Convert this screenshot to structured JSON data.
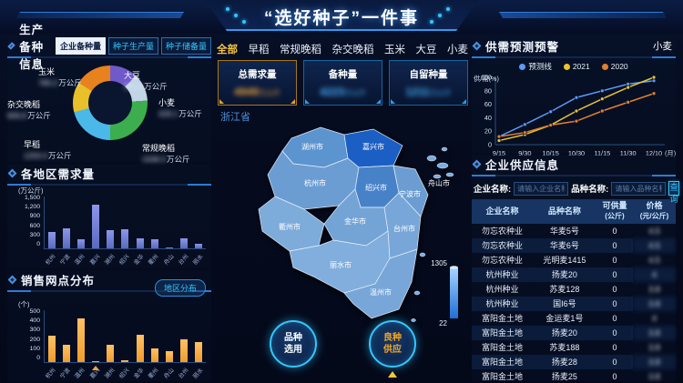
{
  "header": {
    "title": "“选好种子”一件事"
  },
  "colors": {
    "accent": "#35c6ff",
    "active_tab": "#f6c643",
    "bar_blue": "#6b7ad0",
    "bar_orange": "#f5a733"
  },
  "production_panel": {
    "title": "生产备种信息",
    "tabs": [
      {
        "label": "企业备种量",
        "active": true
      },
      {
        "label": "种子生产量",
        "active": false
      },
      {
        "label": "种子储备量",
        "active": false
      }
    ],
    "chart_data": {
      "type": "pie",
      "title": "企业备种量",
      "unit": "万公斤",
      "values_blurred": true,
      "slices": [
        {
          "label": "大豆",
          "value_display": "355.6",
          "pct": 12,
          "color": "#7059c9"
        },
        {
          "label": "小麦",
          "value_display": "429.1",
          "pct": 12,
          "color": "#c2d4e8"
        },
        {
          "label": "常规晚稻",
          "value_display": "1508.3",
          "pct": 26,
          "color": "#3cae4e"
        },
        {
          "label": "早稻",
          "value_display": "1203.4",
          "pct": 21,
          "color": "#4ab8e8"
        },
        {
          "label": "杂交晚稻",
          "value_display": "906.8",
          "pct": 13,
          "color": "#e7c02a"
        },
        {
          "label": "玉米",
          "value_display": "780.2",
          "pct": 16,
          "color": "#e8821f"
        }
      ]
    }
  },
  "demand_panel": {
    "title": "各地区需求量",
    "chart_data": {
      "type": "bar",
      "unit": "(万公斤)",
      "ylim": [
        0,
        1500
      ],
      "yticks": [
        "1,500",
        "1,200",
        "900",
        "600",
        "300",
        "0"
      ],
      "categories": [
        "杭州",
        "宁波",
        "温州",
        "嘉兴",
        "湖州",
        "绍兴",
        "金华",
        "衢州",
        "舟山",
        "台州",
        "丽水"
      ],
      "values": [
        470,
        580,
        260,
        1270,
        520,
        550,
        280,
        270,
        20,
        290,
        120
      ]
    }
  },
  "sales_panel": {
    "title": "销售网点分布",
    "tag": "地区分布",
    "chart_data": {
      "type": "bar",
      "unit": "(个)",
      "ylim": [
        0,
        500
      ],
      "yticks": [
        "500",
        "400",
        "300",
        "200",
        "100",
        "0"
      ],
      "categories": [
        "杭州",
        "宁波",
        "温州",
        "嘉兴",
        "湖州",
        "绍兴",
        "金华",
        "衢州",
        "舟山",
        "台州",
        "丽水"
      ],
      "values": [
        255,
        165,
        420,
        5,
        165,
        20,
        265,
        130,
        105,
        220,
        190
      ],
      "marker_index": 3
    }
  },
  "center": {
    "crop_tabs": [
      {
        "label": "全部",
        "active": true
      },
      {
        "label": "早稻",
        "active": false
      },
      {
        "label": "常规晚稻",
        "active": false
      },
      {
        "label": "杂交晚稻",
        "active": false
      },
      {
        "label": "玉米",
        "active": false
      },
      {
        "label": "大豆",
        "active": false
      },
      {
        "label": "小麦",
        "active": false
      }
    ],
    "stat_cards": [
      {
        "label": "总需求量",
        "value": "4949",
        "unit": "万公斤",
        "theme": "orange",
        "blurred": true
      },
      {
        "label": "备种量",
        "value": "4223",
        "unit": "万公斤",
        "theme": "blue",
        "blurred": true
      },
      {
        "label": "自留种量",
        "value": "1211",
        "unit": "万公斤",
        "theme": "blue",
        "blurred": true
      }
    ],
    "province_label": "浙江省",
    "map": {
      "scale_max": "1305",
      "scale_min": "22",
      "cities": [
        "湖州市",
        "嘉兴市",
        "杭州市",
        "绍兴市",
        "宁波市",
        "舟山市",
        "金华市",
        "衢州市",
        "台州市",
        "丽水市",
        "温州市"
      ]
    },
    "action_buttons": [
      {
        "line1": "品种",
        "line2": "选用",
        "theme": "blue"
      },
      {
        "line1": "良种",
        "line2": "供应",
        "theme": "orange"
      }
    ]
  },
  "forecast_panel": {
    "title": "供需预测预警",
    "crop": "小麦",
    "ylabel": "供/需(%)",
    "xunit": "(月)",
    "chart_data": {
      "type": "line",
      "x": [
        "9/15",
        "9/30",
        "10/15",
        "10/30",
        "11/15",
        "11/30",
        "12/10"
      ],
      "ylim": [
        0,
        100
      ],
      "yticks": [
        0,
        20,
        40,
        60,
        80,
        100
      ],
      "series": [
        {
          "name": "预测线",
          "color": "#5b9bf5",
          "values": [
            12,
            30,
            49,
            70,
            80,
            90,
            95
          ]
        },
        {
          "name": "2021",
          "color": "#e9c42c",
          "values": [
            6,
            15,
            29,
            50,
            68,
            85,
            100
          ]
        },
        {
          "name": "2020",
          "color": "#e2802b",
          "values": [
            12,
            18,
            29,
            35,
            50,
            63,
            76
          ]
        }
      ]
    }
  },
  "supply_panel": {
    "title": "企业供应信息",
    "search": {
      "company_label": "企业名称:",
      "company_placeholder": "请输入企业名称",
      "variety_label": "品种名称:",
      "variety_placeholder": "请输入品种名称",
      "button": "查询"
    },
    "table": {
      "price_blurred": true,
      "headers": [
        {
          "line1": "企业名称",
          "line2": ""
        },
        {
          "line1": "品种名称",
          "line2": ""
        },
        {
          "line1": "可供量",
          "line2": "(公斤)"
        },
        {
          "line1": "价格",
          "line2": "(元/公斤)"
        }
      ],
      "rows": [
        [
          "勿忘农种业",
          "华麦5号",
          "0",
          "4.5"
        ],
        [
          "勿忘农种业",
          "华麦6号",
          "0",
          "4.5"
        ],
        [
          "勿忘农种业",
          "光明麦1415",
          "0",
          "4.5"
        ],
        [
          "杭州种业",
          "扬麦20",
          "0",
          "4"
        ],
        [
          "杭州种业",
          "苏麦128",
          "0",
          "3.8"
        ],
        [
          "杭州种业",
          "国I6号",
          "0",
          "3.8"
        ],
        [
          "富阳金土地",
          "金运麦1号",
          "0",
          "4"
        ],
        [
          "富阳金土地",
          "扬麦20",
          "0",
          "3.8"
        ],
        [
          "富阳金土地",
          "苏麦188",
          "0",
          "3.8"
        ],
        [
          "富阳金土地",
          "扬麦28",
          "0",
          "3.8"
        ],
        [
          "富阳金土地",
          "扬麦25",
          "0",
          "3.8"
        ]
      ]
    }
  }
}
